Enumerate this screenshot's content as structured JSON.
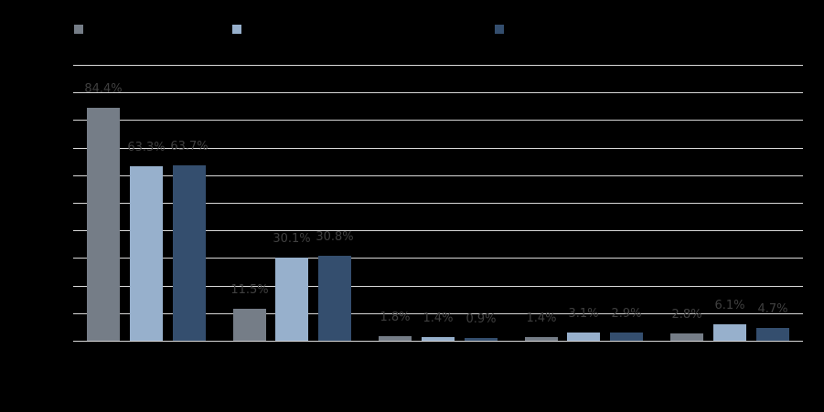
{
  "chart_data": {
    "type": "bar",
    "title": "",
    "xlabel": "",
    "ylabel": "",
    "ylim": [
      0,
      100
    ],
    "yticks": [
      0,
      10,
      20,
      30,
      40,
      50,
      60,
      70,
      80,
      90,
      100
    ],
    "grid": true,
    "legend_position": "top",
    "categories": [
      "",
      "",
      "",
      "",
      ""
    ],
    "series": [
      {
        "name": "",
        "color": "#757d87",
        "values": [
          84.4,
          11.5,
          1.8,
          1.4,
          2.8
        ],
        "labels": [
          "84.4%",
          "11.5%",
          "1.8%",
          "1.4%",
          "2.8%"
        ]
      },
      {
        "name": "",
        "color": "#97b0cc",
        "values": [
          63.3,
          30.1,
          1.4,
          3.1,
          6.1
        ],
        "labels": [
          "63.3%",
          "30.1%",
          "1.4%",
          "3.1%",
          "6.1%"
        ]
      },
      {
        "name": "",
        "color": "#344e6e",
        "values": [
          63.7,
          30.8,
          0.9,
          2.9,
          4.7
        ],
        "labels": [
          "63.7%",
          "30.8%",
          "0.9%",
          "2.9%",
          "4.7%"
        ]
      }
    ],
    "notes": "Legend labels, category labels and y-axis tick labels are rendered in black on a black background and are not legible."
  },
  "colors": {
    "background": "#000000",
    "gridline": "#d9d9d9",
    "data_label": "#404040"
  }
}
